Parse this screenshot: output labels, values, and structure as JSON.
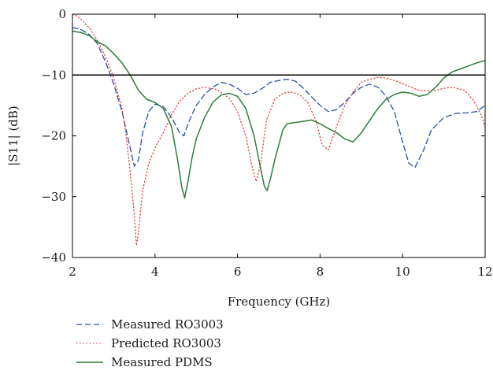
{
  "chart_data": {
    "type": "line",
    "xlabel": "Frequency (GHz)",
    "ylabel": "|S11| (dB)",
    "xlim": [
      2,
      12
    ],
    "ylim": [
      -40,
      0
    ],
    "xticks": [
      2,
      4,
      6,
      8,
      10,
      12
    ],
    "yticks": [
      0,
      -10,
      -20,
      -30,
      -40
    ],
    "grid": false,
    "legend_position": "bottom-left-below-axes",
    "reference_line": {
      "y": -10,
      "color": "#000000"
    },
    "series": [
      {
        "name": "Measured RO3003",
        "color": "#2b4fa0",
        "style": "dashed",
        "x": [
          2.0,
          2.2,
          2.4,
          2.6,
          2.8,
          3.0,
          3.2,
          3.35,
          3.5,
          3.6,
          3.7,
          3.85,
          4.0,
          4.2,
          4.4,
          4.6,
          4.7,
          4.8,
          5.0,
          5.2,
          5.4,
          5.6,
          5.8,
          6.0,
          6.2,
          6.4,
          6.6,
          6.8,
          7.0,
          7.2,
          7.4,
          7.6,
          7.8,
          8.0,
          8.2,
          8.4,
          8.6,
          8.8,
          9.0,
          9.2,
          9.4,
          9.6,
          9.8,
          10.0,
          10.15,
          10.3,
          10.5,
          10.7,
          11.0,
          11.3,
          11.6,
          11.8,
          12.0
        ],
        "values": [
          -2.2,
          -2.5,
          -3.3,
          -4.8,
          -7.8,
          -11.5,
          -16.0,
          -20.5,
          -25.0,
          -24.0,
          -19.5,
          -16.0,
          -14.8,
          -15.2,
          -17.0,
          -19.5,
          -20.0,
          -18.0,
          -15.0,
          -13.2,
          -12.0,
          -11.2,
          -11.5,
          -12.2,
          -13.2,
          -13.0,
          -12.2,
          -11.2,
          -10.9,
          -10.7,
          -11.0,
          -12.2,
          -13.6,
          -15.0,
          -16.0,
          -15.7,
          -14.5,
          -13.0,
          -12.0,
          -11.5,
          -12.0,
          -13.5,
          -16.0,
          -21.0,
          -24.5,
          -25.2,
          -22.5,
          -19.0,
          -17.0,
          -16.3,
          -16.2,
          -16.0,
          -15.0
        ]
      },
      {
        "name": "Predicted RO3003",
        "color": "#e0443c",
        "style": "dotted",
        "x": [
          2.0,
          2.1,
          2.2,
          2.4,
          2.6,
          2.8,
          3.0,
          3.2,
          3.3,
          3.4,
          3.5,
          3.55,
          3.6,
          3.7,
          3.85,
          4.0,
          4.2,
          4.4,
          4.6,
          4.8,
          5.0,
          5.2,
          5.5,
          5.8,
          6.0,
          6.2,
          6.35,
          6.45,
          6.55,
          6.7,
          6.9,
          7.1,
          7.3,
          7.5,
          7.7,
          7.9,
          8.05,
          8.2,
          8.4,
          8.6,
          8.8,
          9.0,
          9.2,
          9.4,
          9.6,
          9.8,
          10.0,
          10.2,
          10.4,
          10.6,
          10.8,
          11.0,
          11.2,
          11.5,
          11.7,
          11.9,
          12.0
        ],
        "values": [
          0.0,
          -0.3,
          -0.8,
          -2.2,
          -4.2,
          -7.0,
          -10.5,
          -15.5,
          -20.0,
          -26.0,
          -33.0,
          -38.0,
          -36.0,
          -29.0,
          -24.5,
          -22.0,
          -19.5,
          -16.5,
          -14.3,
          -13.0,
          -12.3,
          -12.0,
          -12.4,
          -13.8,
          -16.0,
          -20.0,
          -25.0,
          -27.5,
          -25.0,
          -17.5,
          -14.0,
          -13.0,
          -12.8,
          -13.2,
          -14.5,
          -17.5,
          -21.5,
          -22.3,
          -18.5,
          -15.0,
          -12.8,
          -11.2,
          -10.7,
          -10.4,
          -10.5,
          -10.9,
          -11.4,
          -12.0,
          -12.5,
          -12.6,
          -12.5,
          -12.2,
          -12.0,
          -12.5,
          -14.0,
          -16.5,
          -18.5
        ]
      },
      {
        "name": "Measured PDMS",
        "color": "#2e7d3a",
        "style": "solid",
        "x": [
          2.0,
          2.2,
          2.4,
          2.6,
          2.8,
          3.0,
          3.2,
          3.4,
          3.6,
          3.8,
          4.0,
          4.2,
          4.4,
          4.55,
          4.65,
          4.72,
          4.8,
          4.9,
          5.0,
          5.2,
          5.4,
          5.6,
          5.8,
          6.0,
          6.2,
          6.4,
          6.55,
          6.65,
          6.72,
          6.8,
          6.9,
          7.0,
          7.1,
          7.2,
          7.4,
          7.6,
          7.8,
          8.0,
          8.2,
          8.4,
          8.6,
          8.8,
          9.0,
          9.2,
          9.4,
          9.6,
          9.8,
          10.0,
          10.2,
          10.4,
          10.6,
          10.8,
          11.0,
          11.2,
          11.4,
          11.6,
          11.8,
          12.0
        ],
        "values": [
          -2.8,
          -3.0,
          -3.5,
          -4.5,
          -5.2,
          -6.5,
          -8.0,
          -10.0,
          -12.5,
          -14.0,
          -14.5,
          -15.5,
          -18.5,
          -24.0,
          -28.5,
          -30.2,
          -27.5,
          -23.5,
          -20.5,
          -17.0,
          -14.5,
          -13.3,
          -13.0,
          -13.5,
          -15.5,
          -20.0,
          -25.0,
          -28.3,
          -29.0,
          -27.0,
          -24.0,
          -21.5,
          -19.0,
          -18.0,
          -17.8,
          -17.6,
          -17.4,
          -18.0,
          -18.8,
          -19.5,
          -20.5,
          -21.0,
          -19.5,
          -17.5,
          -15.5,
          -14.0,
          -13.2,
          -12.8,
          -13.0,
          -13.5,
          -13.2,
          -12.0,
          -10.5,
          -9.5,
          -9.0,
          -8.5,
          -8.0,
          -7.6
        ]
      }
    ]
  }
}
